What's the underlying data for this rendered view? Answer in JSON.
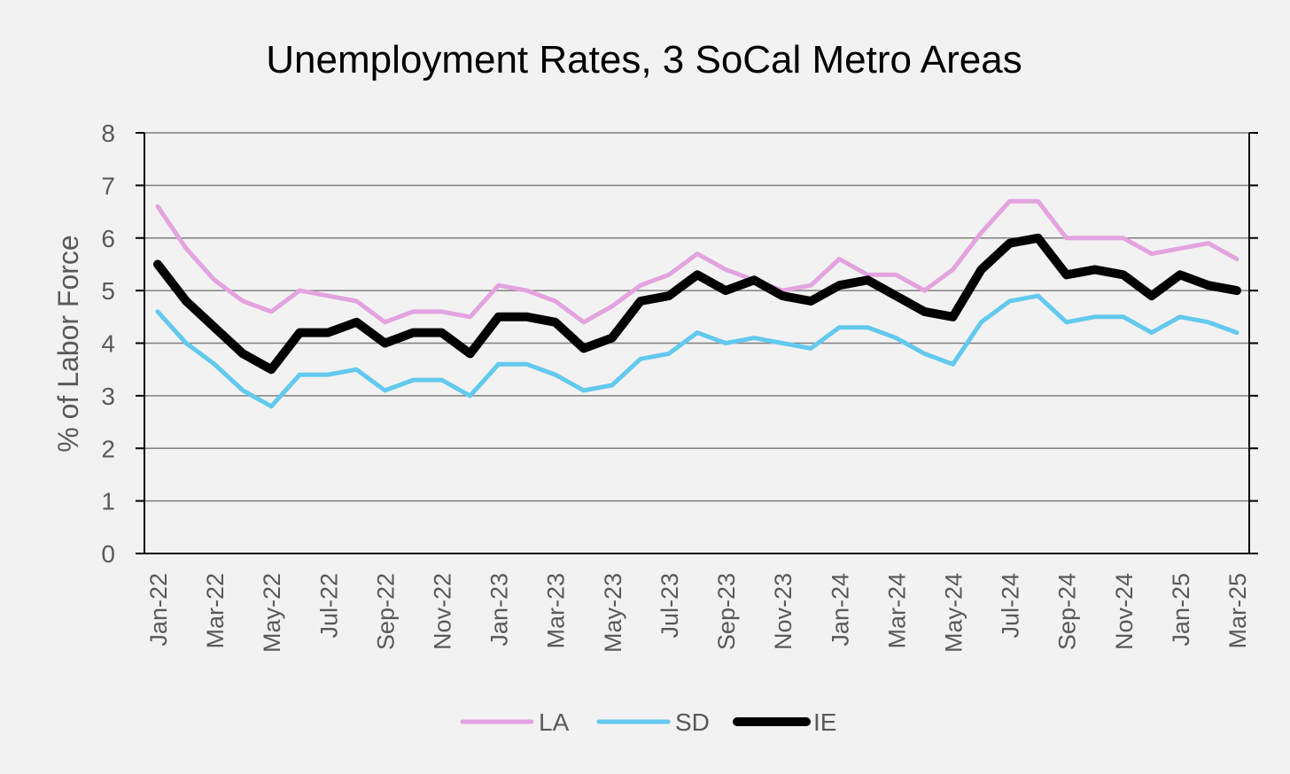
{
  "chart_data": {
    "type": "line",
    "title": "Unemployment Rates, 3 SoCal Metro Areas",
    "xlabel": "",
    "ylabel": "% of Labor Force",
    "ylim": [
      0,
      8
    ],
    "yticks": [
      "0",
      "1",
      "2",
      "3",
      "4",
      "5",
      "6",
      "7",
      "8"
    ],
    "grid": true,
    "legend_position": "bottom",
    "x": [
      "Jan-22",
      "Feb-22",
      "Mar-22",
      "Apr-22",
      "May-22",
      "Jun-22",
      "Jul-22",
      "Aug-22",
      "Sep-22",
      "Oct-22",
      "Nov-22",
      "Dec-22",
      "Jan-23",
      "Feb-23",
      "Mar-23",
      "Apr-23",
      "May-23",
      "Jun-23",
      "Jul-23",
      "Aug-23",
      "Sep-23",
      "Oct-23",
      "Nov-23",
      "Dec-23",
      "Jan-24",
      "Feb-24",
      "Mar-24",
      "Apr-24",
      "May-24",
      "Jun-24",
      "Jul-24",
      "Aug-24",
      "Sep-24",
      "Oct-24",
      "Nov-24",
      "Dec-24",
      "Jan-25",
      "Feb-25",
      "Mar-25"
    ],
    "xtick_labels": [
      "Jan-22",
      "Mar-22",
      "May-22",
      "Jul-22",
      "Sep-22",
      "Nov-22",
      "Jan-23",
      "Mar-23",
      "May-23",
      "Jul-23",
      "Sep-23",
      "Nov-23",
      "Jan-24",
      "Mar-24",
      "May-24",
      "Jul-24",
      "Sep-24",
      "Nov-24",
      "Jan-25",
      "Mar-25"
    ],
    "series": [
      {
        "name": "LA",
        "color": "#e3a3df",
        "values": [
          6.6,
          5.8,
          5.2,
          4.8,
          4.6,
          5.0,
          4.9,
          4.8,
          4.4,
          4.6,
          4.6,
          4.5,
          5.1,
          5.0,
          4.8,
          4.4,
          4.7,
          5.1,
          5.3,
          5.7,
          5.4,
          5.2,
          5.0,
          5.1,
          5.6,
          5.3,
          5.3,
          5.0,
          5.4,
          6.1,
          6.7,
          6.7,
          6.0,
          6.0,
          6.0,
          5.7,
          5.8,
          5.9,
          5.6
        ]
      },
      {
        "name": "SD",
        "color": "#63c9ee",
        "values": [
          4.6,
          4.0,
          3.6,
          3.1,
          2.8,
          3.4,
          3.4,
          3.5,
          3.1,
          3.3,
          3.3,
          3.0,
          3.6,
          3.6,
          3.4,
          3.1,
          3.2,
          3.7,
          3.8,
          4.2,
          4.0,
          4.1,
          4.0,
          3.9,
          4.3,
          4.3,
          4.1,
          3.8,
          3.6,
          4.4,
          4.8,
          4.9,
          4.4,
          4.5,
          4.5,
          4.2,
          4.5,
          4.4,
          4.2
        ]
      },
      {
        "name": "IE",
        "color": "#000000",
        "values": [
          5.5,
          4.8,
          4.3,
          3.8,
          3.5,
          4.2,
          4.2,
          4.4,
          4.0,
          4.2,
          4.2,
          3.8,
          4.5,
          4.5,
          4.4,
          3.9,
          4.1,
          4.8,
          4.9,
          5.3,
          5.0,
          5.2,
          4.9,
          4.8,
          5.1,
          5.2,
          4.9,
          4.6,
          4.5,
          5.4,
          5.9,
          6.0,
          5.3,
          5.4,
          5.3,
          4.9,
          5.3,
          5.1,
          5.0
        ]
      }
    ]
  }
}
